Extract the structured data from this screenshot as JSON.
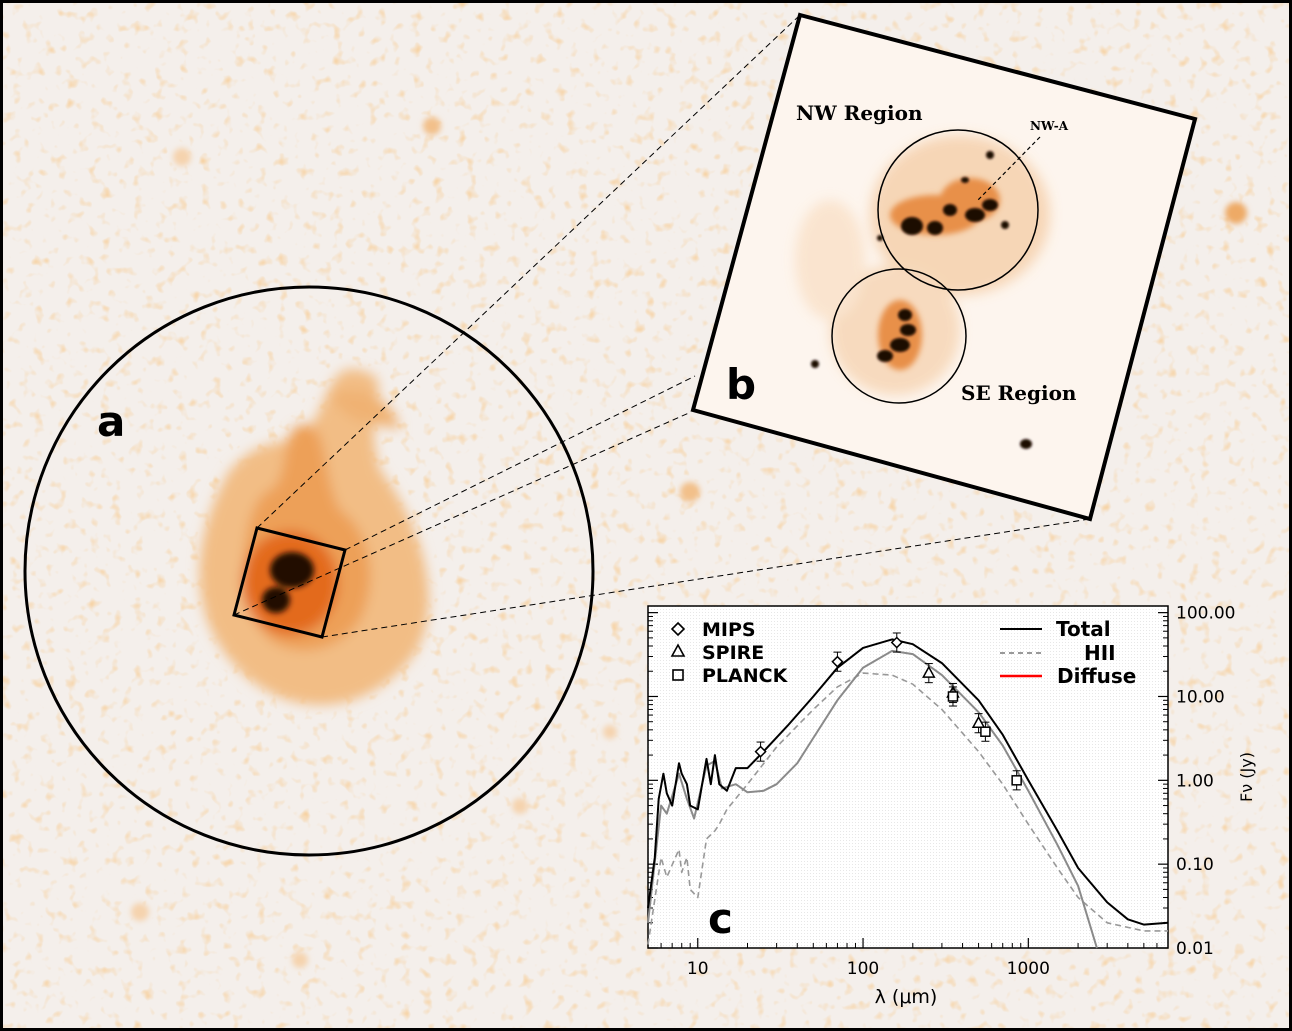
{
  "colors": {
    "background": "#f4efeb",
    "faint": "#f3d2ad",
    "mid": "#eea25c",
    "strong": "#e0641a",
    "core": "#2a0b00",
    "frame": "#000000",
    "hii_curve": "#999999",
    "diffuse_curve": "#ff0000"
  },
  "panel_a": {
    "letter": "a"
  },
  "panel_b": {
    "letter": "b",
    "nw_region_label": "NW Region",
    "se_region_label": "SE Region",
    "nw_a_label": "NW-A"
  },
  "panel_c": {
    "letter": "c",
    "legend_markers": [
      {
        "symbol": "diamond",
        "label": "MIPS"
      },
      {
        "symbol": "triangle",
        "label": "SPIRE"
      },
      {
        "symbol": "square",
        "label": "PLANCK"
      }
    ],
    "legend_lines": [
      {
        "style": "solid-black",
        "label": "Total"
      },
      {
        "style": "dashed-gray",
        "label": "HII"
      },
      {
        "style": "solid-red",
        "label": "Diffuse"
      }
    ]
  },
  "chart_data": {
    "type": "line",
    "xlabel": "λ (μm)",
    "ylabel": "Fν (Jy)",
    "x_scale": "log",
    "y_scale": "log",
    "xlim": [
      5,
      7000
    ],
    "ylim": [
      0.01,
      120
    ],
    "x_ticks": [
      {
        "value": 10,
        "label": "10"
      },
      {
        "value": 100,
        "label": "100"
      },
      {
        "value": 1000,
        "label": "1000"
      }
    ],
    "y_ticks": [
      {
        "value": 100,
        "label": "100.00"
      },
      {
        "value": 10,
        "label": "10.00"
      },
      {
        "value": 1,
        "label": "1.00"
      },
      {
        "value": 0.1,
        "label": "0.10"
      },
      {
        "value": 0.01,
        "label": "0.01"
      }
    ],
    "series": [
      {
        "name": "Total",
        "points": [
          [
            5,
            0.03
          ],
          [
            5.5,
            0.12
          ],
          [
            5.8,
            0.6
          ],
          [
            6.2,
            1.2
          ],
          [
            6.5,
            0.7
          ],
          [
            7,
            0.5
          ],
          [
            7.7,
            1.6
          ],
          [
            8,
            1.2
          ],
          [
            8.6,
            0.9
          ],
          [
            9,
            0.5
          ],
          [
            10,
            0.45
          ],
          [
            11.3,
            1.8
          ],
          [
            12,
            0.9
          ],
          [
            12.7,
            2.0
          ],
          [
            13.5,
            0.9
          ],
          [
            15,
            0.75
          ],
          [
            17,
            1.4
          ],
          [
            20,
            1.4
          ],
          [
            25,
            2.2
          ],
          [
            35,
            4.5
          ],
          [
            50,
            10
          ],
          [
            70,
            22
          ],
          [
            100,
            38
          ],
          [
            150,
            48
          ],
          [
            200,
            42
          ],
          [
            300,
            25
          ],
          [
            500,
            9
          ],
          [
            700,
            3.5
          ],
          [
            1000,
            1.0
          ],
          [
            1500,
            0.25
          ],
          [
            2000,
            0.09
          ],
          [
            3000,
            0.035
          ],
          [
            4000,
            0.022
          ],
          [
            5000,
            0.019
          ],
          [
            7000,
            0.02
          ]
        ]
      },
      {
        "name": "HII",
        "points": [
          [
            5,
            0.011
          ],
          [
            6,
            0.12
          ],
          [
            6.5,
            0.07
          ],
          [
            7.7,
            0.15
          ],
          [
            8,
            0.08
          ],
          [
            8.6,
            0.12
          ],
          [
            9,
            0.05
          ],
          [
            10,
            0.04
          ],
          [
            11.3,
            0.2
          ],
          [
            12.7,
            0.25
          ],
          [
            13.5,
            0.3
          ],
          [
            15,
            0.45
          ],
          [
            20,
            0.9
          ],
          [
            30,
            2.5
          ],
          [
            50,
            7
          ],
          [
            70,
            13
          ],
          [
            100,
            19
          ],
          [
            150,
            18
          ],
          [
            200,
            14
          ],
          [
            300,
            7
          ],
          [
            500,
            2.2
          ],
          [
            700,
            0.9
          ],
          [
            1000,
            0.3
          ],
          [
            1500,
            0.09
          ],
          [
            2000,
            0.04
          ],
          [
            3000,
            0.02
          ],
          [
            5000,
            0.016
          ],
          [
            7000,
            0.016
          ]
        ]
      },
      {
        "name": "Diffuse",
        "points": [
          [
            5,
            0.02
          ],
          [
            6,
            0.5
          ],
          [
            6.5,
            0.4
          ],
          [
            7.7,
            1.2
          ],
          [
            8.6,
            0.6
          ],
          [
            9.5,
            0.35
          ],
          [
            11.3,
            1.5
          ],
          [
            12.7,
            1.7
          ],
          [
            14,
            0.8
          ],
          [
            17,
            0.9
          ],
          [
            20,
            0.72
          ],
          [
            25,
            0.75
          ],
          [
            30,
            0.9
          ],
          [
            40,
            1.6
          ],
          [
            50,
            3.2
          ],
          [
            70,
            9
          ],
          [
            100,
            22
          ],
          [
            150,
            35
          ],
          [
            200,
            32
          ],
          [
            300,
            18
          ],
          [
            500,
            6.5
          ],
          [
            700,
            2.6
          ],
          [
            1000,
            0.75
          ],
          [
            1500,
            0.17
          ],
          [
            2000,
            0.055
          ],
          [
            2600,
            0.01
          ]
        ]
      }
    ],
    "observations": [
      {
        "instrument": "MIPS",
        "marker": "diamond",
        "points": [
          [
            24,
            2.2
          ],
          [
            70,
            26
          ],
          [
            160,
            44
          ]
        ]
      },
      {
        "instrument": "SPIRE",
        "marker": "triangle",
        "points": [
          [
            250,
            19
          ],
          [
            350,
            11
          ],
          [
            500,
            4.8
          ]
        ]
      },
      {
        "instrument": "PLANCK",
        "marker": "square",
        "points": [
          [
            350,
            10
          ],
          [
            550,
            3.8
          ],
          [
            850,
            1.0
          ]
        ]
      }
    ]
  }
}
